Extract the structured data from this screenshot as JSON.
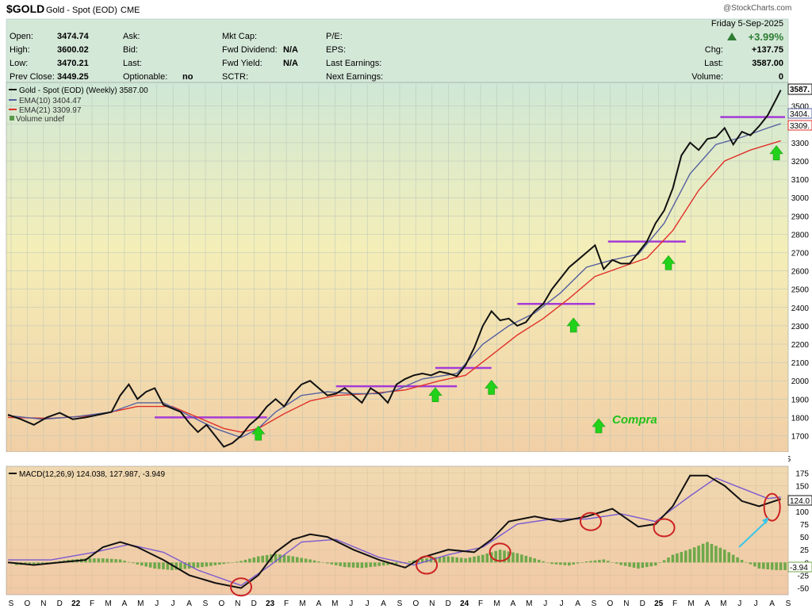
{
  "header": {
    "symbol": "$GOLD",
    "name": "Gold - Spot (EOD)",
    "exchange": "CME",
    "watermark": "@StockCharts.com"
  },
  "quote": {
    "date": "Friday  5-Sep-2025",
    "change_pct": "+3.99%",
    "open_label": "Open:",
    "open": "3474.74",
    "high_label": "High:",
    "high": "3600.02",
    "low_label": "Low:",
    "low": "3470.21",
    "prev_close_label": "Prev Close:",
    "prev_close": "3449.25",
    "ask_label": "Ask:",
    "bid_label": "Bid:",
    "last_label": "Last:",
    "optionable_label": "Optionable:",
    "optionable": "no",
    "mktcap_label": "Mkt Cap:",
    "fwd_div_label": "Fwd Dividend:",
    "fwd_div": "N/A",
    "fwd_yield_label": "Fwd Yield:",
    "fwd_yield": "N/A",
    "sctr_label": "SCTR:",
    "pe_label": "P/E:",
    "eps_label": "EPS:",
    "last_earn_label": "Last Earnings:",
    "next_earn_label": "Next Earnings:",
    "chg_label": "Chg:",
    "chg": "+137.75",
    "last2_label": "Last:",
    "last2": "3587.00",
    "volume_label": "Volume:",
    "volume": "0"
  },
  "colors": {
    "price": "#111111",
    "ema10": "#5560a0",
    "ema21": "#e0312a",
    "resistance": "#a43bd6",
    "buy_arrow": "#22d11a",
    "macd_signal": "#7a5ad0",
    "histogram": "#6fa84a",
    "circle": "#cc2222",
    "annotation_arrow": "#3ac6e8"
  },
  "chart_data": [
    {
      "type": "line",
      "legend": [
        "Gold - Spot (EOD) (Weekly) 3587.00",
        "EMA(10) 3404.47",
        "EMA(21) 3309.97",
        "Volume undef"
      ],
      "y_ticks": [
        1700,
        1800,
        1900,
        2000,
        2100,
        2200,
        2300,
        2400,
        2500,
        2600,
        2700,
        2800,
        2900,
        3000,
        3100,
        3200,
        3300,
        3400,
        3500
      ],
      "ylim": [
        1620,
        3620
      ],
      "last_price_label": "3587.",
      "ema10_label": "3404.",
      "ema21_label": "3309.",
      "x_month_labels": [
        "S",
        "O",
        "N",
        "D",
        "22",
        "F",
        "M",
        "A",
        "M",
        "J",
        "J",
        "A",
        "S",
        "O",
        "N",
        "D",
        "23",
        "F",
        "M",
        "A",
        "M",
        "J",
        "J",
        "A",
        "S",
        "O",
        "N",
        "D",
        "24",
        "F",
        "M",
        "A",
        "M",
        "J",
        "J",
        "A",
        "S",
        "O",
        "N",
        "D",
        "25",
        "F",
        "M",
        "A",
        "M",
        "J",
        "J",
        "A",
        "S"
      ],
      "price": [
        [
          0,
          1815
        ],
        [
          3,
          1790
        ],
        [
          6,
          1760
        ],
        [
          9,
          1800
        ],
        [
          12,
          1825
        ],
        [
          15,
          1790
        ],
        [
          18,
          1800
        ],
        [
          21,
          1815
        ],
        [
          24,
          1830
        ],
        [
          26,
          1920
        ],
        [
          28,
          1980
        ],
        [
          30,
          1900
        ],
        [
          32,
          1940
        ],
        [
          34,
          1960
        ],
        [
          36,
          1870
        ],
        [
          38,
          1850
        ],
        [
          40,
          1830
        ],
        [
          42,
          1770
        ],
        [
          44,
          1720
        ],
        [
          46,
          1760
        ],
        [
          48,
          1700
        ],
        [
          50,
          1640
        ],
        [
          52,
          1660
        ],
        [
          54,
          1700
        ],
        [
          56,
          1760
        ],
        [
          58,
          1800
        ],
        [
          60,
          1860
        ],
        [
          62,
          1900
        ],
        [
          64,
          1860
        ],
        [
          66,
          1930
        ],
        [
          68,
          1980
        ],
        [
          70,
          2000
        ],
        [
          72,
          1960
        ],
        [
          74,
          1920
        ],
        [
          76,
          1930
        ],
        [
          78,
          1960
        ],
        [
          80,
          1920
        ],
        [
          82,
          1880
        ],
        [
          84,
          1960
        ],
        [
          86,
          1930
        ],
        [
          88,
          1880
        ],
        [
          90,
          1980
        ],
        [
          92,
          2010
        ],
        [
          94,
          2030
        ],
        [
          96,
          2040
        ],
        [
          98,
          2030
        ],
        [
          100,
          2050
        ],
        [
          102,
          2040
        ],
        [
          104,
          2025
        ],
        [
          106,
          2085
        ],
        [
          108,
          2180
        ],
        [
          110,
          2300
        ],
        [
          112,
          2380
        ],
        [
          114,
          2330
        ],
        [
          116,
          2340
        ],
        [
          118,
          2300
        ],
        [
          120,
          2320
        ],
        [
          122,
          2380
        ],
        [
          124,
          2420
        ],
        [
          126,
          2500
        ],
        [
          128,
          2560
        ],
        [
          130,
          2620
        ],
        [
          132,
          2660
        ],
        [
          134,
          2700
        ],
        [
          136,
          2740
        ],
        [
          138,
          2610
        ],
        [
          140,
          2660
        ],
        [
          142,
          2640
        ],
        [
          144,
          2640
        ],
        [
          146,
          2700
        ],
        [
          148,
          2760
        ],
        [
          150,
          2860
        ],
        [
          152,
          2930
        ],
        [
          154,
          3050
        ],
        [
          156,
          3230
        ],
        [
          158,
          3300
        ],
        [
          160,
          3260
        ],
        [
          162,
          3320
        ],
        [
          164,
          3330
        ],
        [
          166,
          3380
        ],
        [
          168,
          3290
        ],
        [
          170,
          3360
        ],
        [
          172,
          3340
        ],
        [
          174,
          3390
        ],
        [
          176,
          3450
        ],
        [
          178,
          3540
        ],
        [
          179,
          3587
        ]
      ],
      "ema10": [
        [
          0,
          1810
        ],
        [
          8,
          1790
        ],
        [
          16,
          1805
        ],
        [
          24,
          1830
        ],
        [
          30,
          1880
        ],
        [
          36,
          1880
        ],
        [
          42,
          1810
        ],
        [
          48,
          1740
        ],
        [
          54,
          1690
        ],
        [
          58,
          1740
        ],
        [
          62,
          1830
        ],
        [
          68,
          1920
        ],
        [
          74,
          1940
        ],
        [
          80,
          1930
        ],
        [
          86,
          1930
        ],
        [
          90,
          1950
        ],
        [
          96,
          2010
        ],
        [
          104,
          2040
        ],
        [
          110,
          2200
        ],
        [
          116,
          2300
        ],
        [
          122,
          2370
        ],
        [
          128,
          2480
        ],
        [
          134,
          2620
        ],
        [
          140,
          2660
        ],
        [
          146,
          2690
        ],
        [
          152,
          2860
        ],
        [
          158,
          3130
        ],
        [
          164,
          3290
        ],
        [
          170,
          3330
        ],
        [
          176,
          3380
        ],
        [
          179,
          3404
        ]
      ],
      "ema21": [
        [
          0,
          1800
        ],
        [
          10,
          1795
        ],
        [
          20,
          1810
        ],
        [
          30,
          1860
        ],
        [
          38,
          1860
        ],
        [
          44,
          1800
        ],
        [
          50,
          1740
        ],
        [
          54,
          1720
        ],
        [
          58,
          1740
        ],
        [
          64,
          1820
        ],
        [
          70,
          1890
        ],
        [
          76,
          1920
        ],
        [
          84,
          1930
        ],
        [
          92,
          1950
        ],
        [
          100,
          2000
        ],
        [
          106,
          2030
        ],
        [
          112,
          2140
        ],
        [
          118,
          2250
        ],
        [
          124,
          2340
        ],
        [
          130,
          2450
        ],
        [
          136,
          2570
        ],
        [
          142,
          2620
        ],
        [
          148,
          2670
        ],
        [
          154,
          2820
        ],
        [
          160,
          3040
        ],
        [
          166,
          3200
        ],
        [
          172,
          3260
        ],
        [
          179,
          3310
        ]
      ],
      "resistance_lines": [
        [
          34,
          60,
          1800
        ],
        [
          76,
          104,
          1970
        ],
        [
          99,
          112,
          2070
        ],
        [
          118,
          136,
          2420
        ],
        [
          139,
          157,
          2760
        ],
        [
          165,
          180,
          3440
        ]
      ],
      "buy_signals": [
        [
          58,
          1710
        ],
        [
          99,
          1920
        ],
        [
          112,
          1960
        ],
        [
          131,
          2300
        ],
        [
          153,
          2640
        ],
        [
          178,
          3240
        ]
      ],
      "legend_buy": "Compra"
    },
    {
      "type": "line",
      "legend": "MACD(12,26,9) 124.038, 127.987, -3.949",
      "y_ticks": [
        -50,
        -25,
        0,
        25,
        50,
        75,
        100,
        125,
        150,
        175
      ],
      "ylim": [
        -60,
        185
      ],
      "macd_label": "124.0",
      "hist_label": "-3.94",
      "macd": [
        [
          0,
          0
        ],
        [
          6,
          -5
        ],
        [
          12,
          0
        ],
        [
          18,
          5
        ],
        [
          22,
          30
        ],
        [
          26,
          40
        ],
        [
          30,
          30
        ],
        [
          36,
          5
        ],
        [
          42,
          -25
        ],
        [
          48,
          -40
        ],
        [
          54,
          -50
        ],
        [
          58,
          -25
        ],
        [
          62,
          20
        ],
        [
          66,
          45
        ],
        [
          70,
          55
        ],
        [
          74,
          50
        ],
        [
          80,
          25
        ],
        [
          86,
          5
        ],
        [
          92,
          -10
        ],
        [
          96,
          10
        ],
        [
          102,
          25
        ],
        [
          108,
          20
        ],
        [
          112,
          45
        ],
        [
          116,
          80
        ],
        [
          122,
          90
        ],
        [
          128,
          80
        ],
        [
          134,
          90
        ],
        [
          140,
          105
        ],
        [
          146,
          70
        ],
        [
          150,
          75
        ],
        [
          154,
          110
        ],
        [
          158,
          170
        ],
        [
          162,
          170
        ],
        [
          166,
          150
        ],
        [
          170,
          120
        ],
        [
          174,
          110
        ],
        [
          179,
          124
        ]
      ],
      "signal": [
        [
          0,
          5
        ],
        [
          10,
          5
        ],
        [
          20,
          20
        ],
        [
          28,
          35
        ],
        [
          36,
          20
        ],
        [
          44,
          -15
        ],
        [
          54,
          -45
        ],
        [
          60,
          -10
        ],
        [
          68,
          40
        ],
        [
          76,
          45
        ],
        [
          86,
          10
        ],
        [
          94,
          -5
        ],
        [
          102,
          15
        ],
        [
          110,
          30
        ],
        [
          118,
          75
        ],
        [
          126,
          85
        ],
        [
          134,
          85
        ],
        [
          142,
          95
        ],
        [
          150,
          80
        ],
        [
          158,
          130
        ],
        [
          164,
          165
        ],
        [
          170,
          145
        ],
        [
          176,
          125
        ],
        [
          179,
          128
        ]
      ],
      "histogram": [
        [
          2,
          -5
        ],
        [
          6,
          -4
        ],
        [
          10,
          0
        ],
        [
          14,
          5
        ],
        [
          18,
          8
        ],
        [
          22,
          8
        ],
        [
          26,
          6
        ],
        [
          30,
          -4
        ],
        [
          34,
          -12
        ],
        [
          38,
          -15
        ],
        [
          42,
          -12
        ],
        [
          46,
          -8
        ],
        [
          50,
          -3
        ],
        [
          54,
          3
        ],
        [
          58,
          12
        ],
        [
          62,
          17
        ],
        [
          66,
          12
        ],
        [
          70,
          6
        ],
        [
          74,
          -2
        ],
        [
          78,
          -9
        ],
        [
          82,
          -11
        ],
        [
          86,
          -7
        ],
        [
          90,
          -3
        ],
        [
          94,
          4
        ],
        [
          98,
          10
        ],
        [
          102,
          12
        ],
        [
          106,
          8
        ],
        [
          110,
          15
        ],
        [
          114,
          25
        ],
        [
          118,
          18
        ],
        [
          122,
          8
        ],
        [
          126,
          -3
        ],
        [
          130,
          -6
        ],
        [
          134,
          2
        ],
        [
          138,
          6
        ],
        [
          142,
          -5
        ],
        [
          146,
          -12
        ],
        [
          150,
          -6
        ],
        [
          154,
          15
        ],
        [
          158,
          26
        ],
        [
          162,
          40
        ],
        [
          166,
          25
        ],
        [
          170,
          5
        ],
        [
          174,
          -12
        ],
        [
          178,
          -15
        ]
      ],
      "circled_points": [
        [
          54,
          -48
        ],
        [
          97,
          -5
        ],
        [
          114,
          20
        ],
        [
          135,
          80
        ],
        [
          152,
          68
        ],
        [
          177,
          108
        ]
      ]
    }
  ]
}
